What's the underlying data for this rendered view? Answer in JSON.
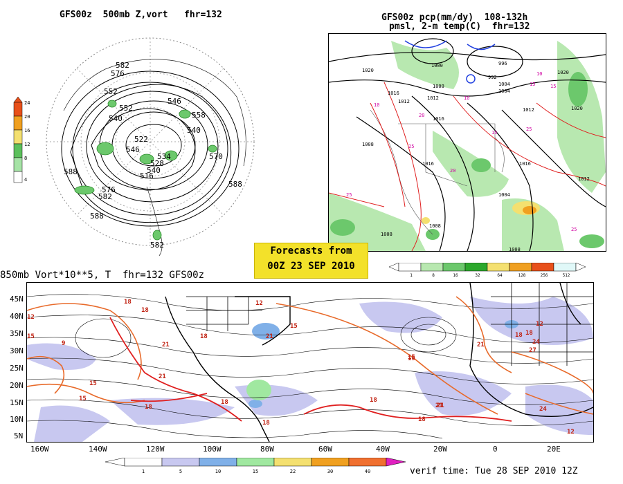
{
  "panels": {
    "polar": {
      "title": "GFS00z  500mb Z,vort   fhr=132",
      "colorbar": {
        "labels": [
          "24",
          "20",
          "16",
          "12",
          "8",
          "4"
        ],
        "colors": [
          "#e8501a",
          "#f0a020",
          "#f4e070",
          "#5cc05c",
          "#a6e3a6",
          "#ffffff"
        ]
      },
      "contour_labels": [
        "582",
        "576",
        "552",
        "540",
        "522",
        "540",
        "546",
        "558",
        "570",
        "588",
        "588",
        "582",
        "576",
        "588",
        "582",
        "546",
        "534",
        "528",
        "516",
        "540",
        "552"
      ]
    },
    "precip": {
      "title_line1": "GFS00z pcp(mm/dy)  108-132h",
      "title_line2": "pmsl, 2-m temp(C)  fhr=132",
      "colorbar": {
        "labels": [
          "1",
          "8",
          "16",
          "32",
          "64",
          "128",
          "256",
          "512"
        ],
        "colors": [
          "#ffffff",
          "#b8e8b0",
          "#6cc86c",
          "#2ca82c",
          "#f4e070",
          "#f0a020",
          "#e8501a",
          "#e0f8f8"
        ]
      },
      "contour_labels": [
        "1020",
        "1016",
        "1012",
        "1008",
        "1004",
        "1000",
        "996",
        "992",
        "1008",
        "1016",
        "1012",
        "1004",
        "1008",
        "1016",
        "1020",
        "1012",
        "1004",
        "1008",
        "1012",
        "1016",
        "1020",
        "1008"
      ],
      "temp_labels": [
        "10",
        "15",
        "20",
        "25",
        "25",
        "10",
        "15",
        "20",
        "25",
        "25",
        "15",
        "10"
      ]
    },
    "vort850": {
      "title": "850mb Vort*10**5, T  fhr=132 GFS00z",
      "lat_labels": [
        "45N",
        "40N",
        "35N",
        "30N",
        "25N",
        "20N",
        "15N",
        "10N",
        "5N"
      ],
      "lon_labels": [
        "160W",
        "140W",
        "120W",
        "100W",
        "80W",
        "60W",
        "40W",
        "20W",
        "0",
        "20E"
      ],
      "temp_labels": [
        "18",
        "12",
        "15",
        "9",
        "15",
        "18",
        "21",
        "18",
        "15",
        "21",
        "18",
        "18",
        "12",
        "21",
        "15",
        "18",
        "21",
        "15",
        "18",
        "21",
        "24",
        "27",
        "18",
        "12",
        "21",
        "24",
        "18",
        "15",
        "12",
        "18"
      ],
      "colorbar": {
        "labels": [
          "1",
          "5",
          "10",
          "15",
          "22",
          "30",
          "40"
        ],
        "colors": [
          "#ffffff",
          "#c8c8f0",
          "#80b0e8",
          "#a0e8a0",
          "#f4e070",
          "#f0a020",
          "#f07030"
        ]
      }
    }
  },
  "forecast_box": {
    "line1": "Forecasts from",
    "line2": "00Z 23 SEP 2010"
  },
  "verif_time": "verif time: Tue 28 SEP 2010 12Z",
  "colors": {
    "orange_contour": "#e8501a",
    "red_contour": "#e02020",
    "magenta_text": "#d000a0",
    "blue_contour": "#2040e0",
    "green_fill": "#6cc86c",
    "vort_fill": "#c8c8f0"
  }
}
